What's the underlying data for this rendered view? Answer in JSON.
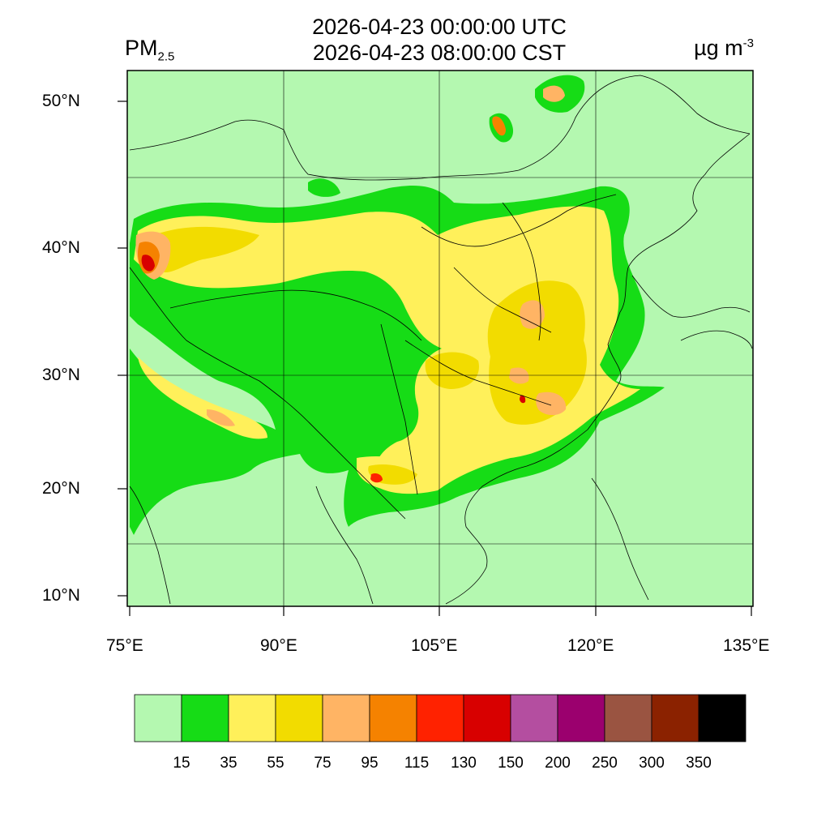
{
  "header": {
    "title_utc": "2026-04-23 00:00:00 UTC",
    "title_cst": "2026-04-23 08:00:00 CST",
    "variable": "PM",
    "variable_sub": "2.5",
    "units": "µg m",
    "units_sup": "-3"
  },
  "axes": {
    "lat_labels": [
      "50°N",
      "40°N",
      "30°N",
      "20°N",
      "10°N"
    ],
    "lon_labels": [
      "75°E",
      "90°E",
      "105°E",
      "120°E",
      "135°E"
    ]
  },
  "colorbar": {
    "levels": [
      "15",
      "35",
      "55",
      "75",
      "95",
      "115",
      "130",
      "150",
      "200",
      "250",
      "300",
      "350"
    ],
    "colors": [
      "#b4f8b0",
      "#16dc16",
      "#fff05a",
      "#f2dc00",
      "#ffb464",
      "#f58200",
      "#ff2200",
      "#d80000",
      "#b44ea0",
      "#9b006e",
      "#9a5441",
      "#8b2200",
      "#000000"
    ]
  }
}
